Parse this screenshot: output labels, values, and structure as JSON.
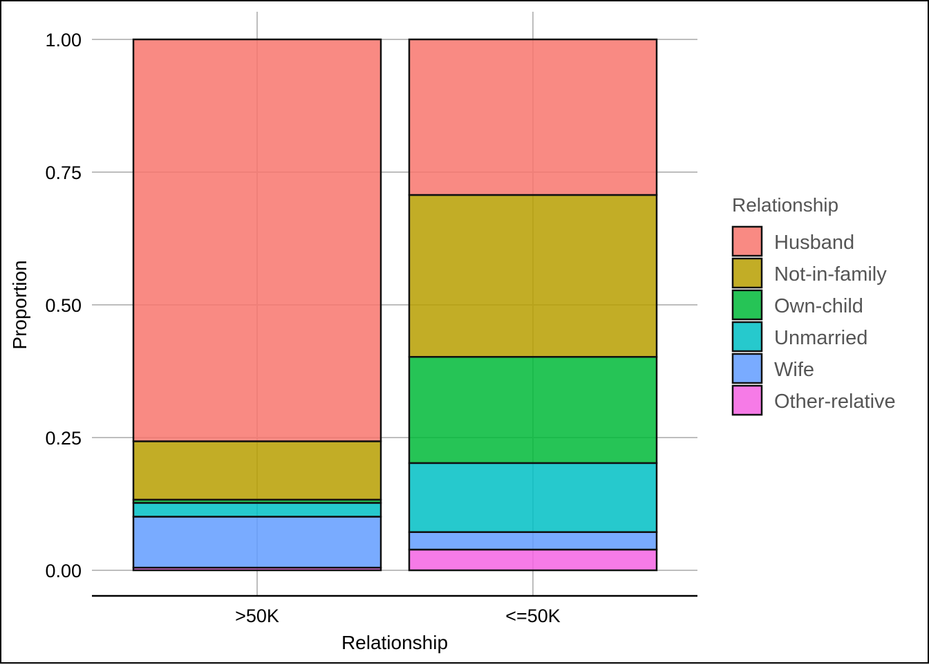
{
  "chart_data": {
    "type": "bar",
    "stacked": true,
    "categories": [
      ">50K",
      "<=50K"
    ],
    "xlabel": "Relationship",
    "ylabel": "Proportion",
    "ylim": [
      0,
      1
    ],
    "yticks": [
      0,
      0.25,
      0.5,
      0.75,
      1
    ],
    "ytick_labels": [
      "0.00",
      "0.25",
      "0.50",
      "0.75",
      "1.00"
    ],
    "grid": true,
    "legend": {
      "title": "Relationship",
      "position": "right"
    },
    "series": [
      {
        "name": "Husband",
        "color": "#F8766D",
        "values": [
          0.757,
          0.293
        ]
      },
      {
        "name": "Not-in-family",
        "color": "#B79F00",
        "values": [
          0.11,
          0.305
        ]
      },
      {
        "name": "Own-child",
        "color": "#00BA38",
        "values": [
          0.006,
          0.2
        ]
      },
      {
        "name": "Unmarried",
        "color": "#00BFC4",
        "values": [
          0.026,
          0.13
        ]
      },
      {
        "name": "Wife",
        "color": "#619CFF",
        "values": [
          0.096,
          0.033
        ]
      },
      {
        "name": "Other-relative",
        "color": "#F564E3",
        "values": [
          0.005,
          0.039
        ]
      }
    ]
  }
}
